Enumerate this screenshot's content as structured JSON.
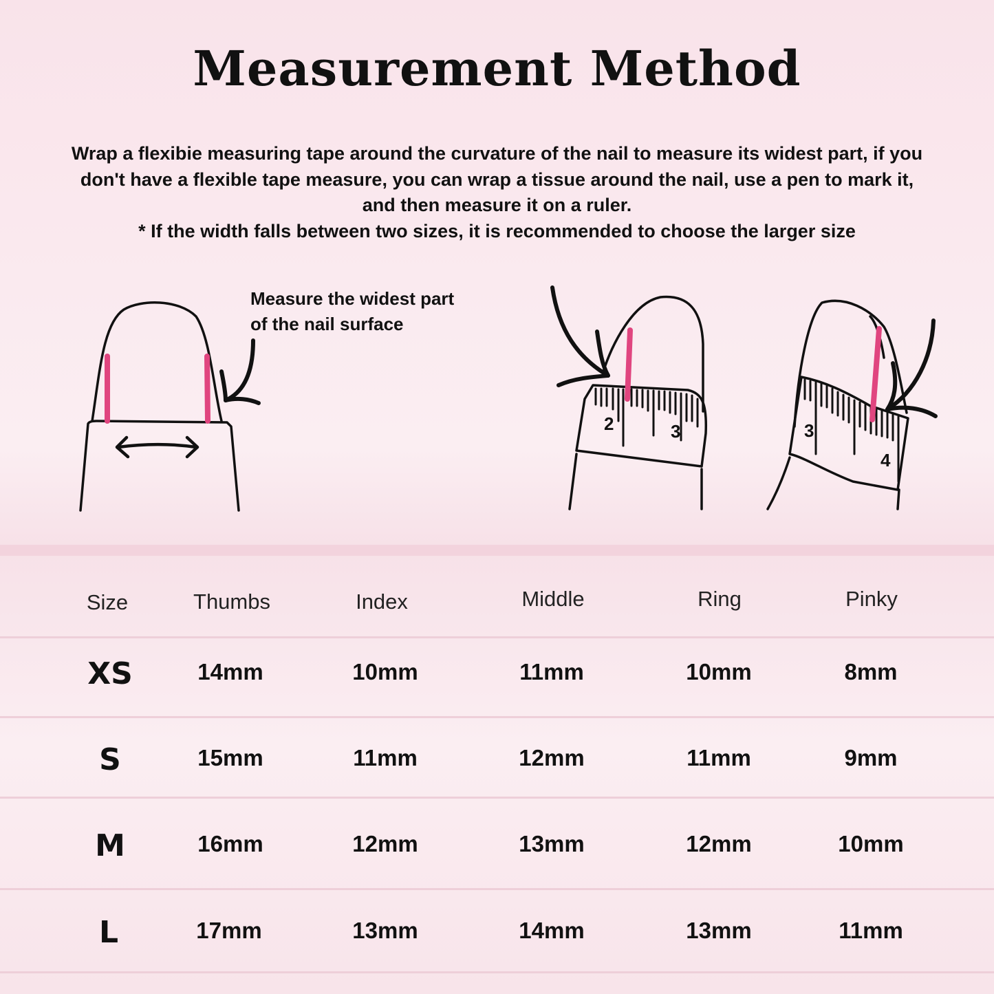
{
  "title": "Measurement Method",
  "intro": {
    "lines": [
      "Wrap a flexibie measuring tape around the curvature of the nail to measure its widest part, if you",
      "don't have a flexible tape measure, you can wrap a tissue around the nail, use a pen to mark it,",
      "and then measure it on a ruler."
    ],
    "note": "* If the width falls between two sizes, it is recommended to choose the larger size"
  },
  "illustration": {
    "caption_lines": [
      "Measure the widest part",
      "of the nail surface"
    ],
    "ruler1_labels": [
      "2",
      "3"
    ],
    "ruler2_labels": [
      "3",
      "4"
    ],
    "accent_color": "#e0457f"
  },
  "table": {
    "headers": [
      "Size",
      "Thumbs",
      "Index",
      "Middle",
      "Ring",
      "Pinky"
    ],
    "rows": [
      {
        "size": "XS",
        "values": [
          "14mm",
          "10mm",
          "11mm",
          "10mm",
          "8mm"
        ]
      },
      {
        "size": "S",
        "values": [
          "15mm",
          "11mm",
          "12mm",
          "11mm",
          "9mm"
        ]
      },
      {
        "size": "M",
        "values": [
          "16mm",
          "12mm",
          "13mm",
          "12mm",
          "10mm"
        ]
      },
      {
        "size": "L",
        "values": [
          "17mm",
          "13mm",
          "14mm",
          "13mm",
          "11mm"
        ]
      }
    ]
  }
}
